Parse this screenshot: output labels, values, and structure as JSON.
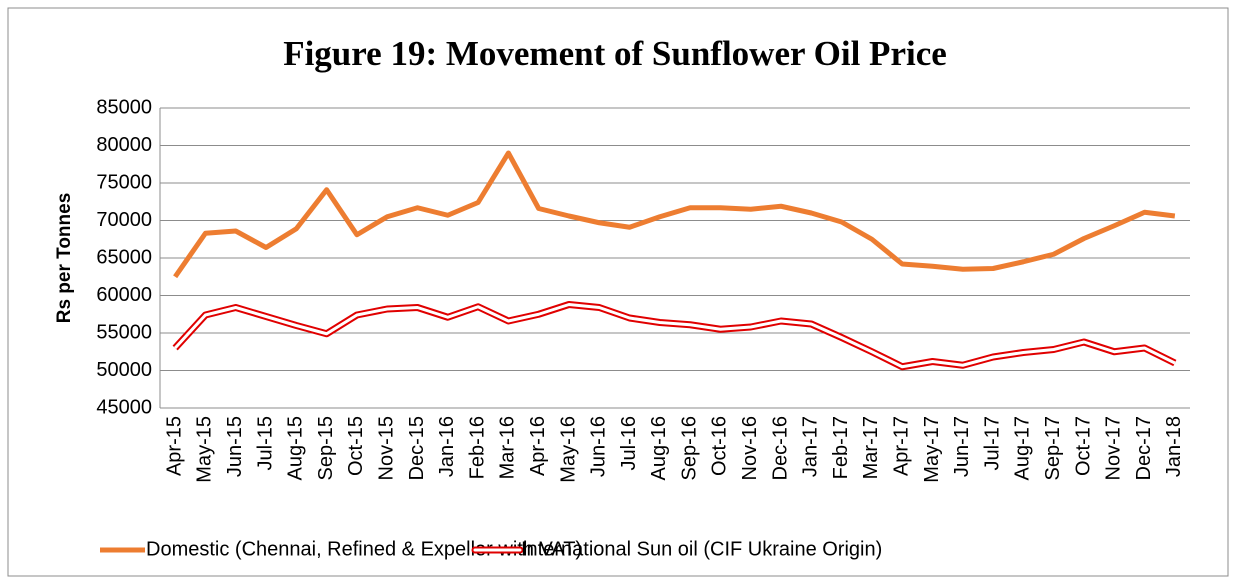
{
  "chart_data": {
    "type": "line",
    "title": "Figure 19: Movement of  Sunflower Oil Price",
    "y_label": "Rs per Tonnes",
    "categories": [
      "Apr-15",
      "May-15",
      "Jun-15",
      "Jul-15",
      "Aug-15",
      "Sep-15",
      "Oct-15",
      "Nov-15",
      "Dec-15",
      "Jan-16",
      "Feb-16",
      "Mar-16",
      "Apr-16",
      "May-16",
      "Jun-16",
      "Jul-16",
      "Aug-16",
      "Sep-16",
      "Oct-16",
      "Nov-16",
      "Dec-16",
      "Jan-17",
      "Feb-17",
      "Mar-17",
      "Apr-17",
      "May-17",
      "Jun-17",
      "Jul-17",
      "Aug-17",
      "Sep-17",
      "Oct-17",
      "Nov-17",
      "Dec-17",
      "Jan-18"
    ],
    "series": [
      {
        "name": "Domestic (Chennai, Refined & Expeller with VAT)",
        "color": "#ed7d31",
        "style": "solid",
        "values": [
          62500,
          68300,
          68600,
          66400,
          68900,
          74100,
          68100,
          70500,
          71700,
          70700,
          72400,
          79000,
          71600,
          70600,
          69700,
          69100,
          70500,
          71700,
          71700,
          71500,
          71900,
          71000,
          69800,
          67500,
          64200,
          63900,
          63500,
          63600,
          64500,
          65500,
          67600,
          69300,
          71100,
          70600
        ]
      },
      {
        "name": "International Sun oil (CIF Ukraine Origin)",
        "color": "#e00000",
        "style": "double",
        "values": [
          53000,
          57400,
          58400,
          57200,
          56000,
          54900,
          57400,
          58200,
          58400,
          57100,
          58500,
          56600,
          57500,
          58800,
          58400,
          57000,
          56400,
          56100,
          55500,
          55800,
          56600,
          56200,
          54400,
          52500,
          50500,
          51200,
          50700,
          51800,
          52400,
          52800,
          53800,
          52500,
          53000,
          51000
        ]
      }
    ],
    "ylim": [
      45000,
      85000
    ],
    "yticks": [
      45000,
      50000,
      55000,
      60000,
      65000,
      70000,
      75000,
      80000,
      85000
    ],
    "grid": true,
    "legend": "bottom"
  }
}
